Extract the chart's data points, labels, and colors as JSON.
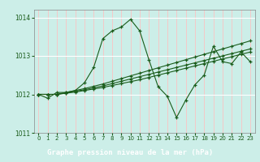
{
  "title": "Graphe pression niveau de la mer (hPa)",
  "bg_color": "#cceee8",
  "plot_bg_color": "#cceee8",
  "line_color": "#1a5c1a",
  "grid_color_v": "#f5c8c8",
  "grid_color_h": "#ffffff",
  "label_bg": "#2d6e2d",
  "label_fg": "#ffffff",
  "ylim": [
    1011.0,
    1014.2
  ],
  "xlim": [
    -0.5,
    23.5
  ],
  "yticks": [
    1011,
    1012,
    1013,
    1014
  ],
  "xticks": [
    0,
    1,
    2,
    3,
    4,
    5,
    6,
    7,
    8,
    9,
    10,
    11,
    12,
    13,
    14,
    15,
    16,
    17,
    18,
    19,
    20,
    21,
    22,
    23
  ],
  "series1": [
    1012.0,
    1011.9,
    1012.05,
    1012.05,
    1012.1,
    1012.3,
    1012.7,
    1013.45,
    1013.65,
    1013.75,
    1013.95,
    1013.65,
    1012.9,
    1012.2,
    1011.95,
    1011.4,
    1011.85,
    1012.25,
    1012.5,
    1013.25,
    1012.85,
    1012.8,
    1013.1,
    1012.85
  ],
  "series2": [
    1012.0,
    1012.0,
    1012.0,
    1012.03,
    1012.06,
    1012.1,
    1012.14,
    1012.18,
    1012.23,
    1012.28,
    1012.33,
    1012.38,
    1012.44,
    1012.5,
    1012.56,
    1012.62,
    1012.68,
    1012.74,
    1012.8,
    1012.86,
    1012.92,
    1012.98,
    1013.04,
    1013.1
  ],
  "series3": [
    1012.0,
    1012.0,
    1012.0,
    1012.04,
    1012.08,
    1012.12,
    1012.17,
    1012.22,
    1012.28,
    1012.34,
    1012.4,
    1012.46,
    1012.52,
    1012.58,
    1012.64,
    1012.7,
    1012.76,
    1012.82,
    1012.88,
    1012.94,
    1013.0,
    1013.06,
    1013.12,
    1013.18
  ],
  "series4": [
    1012.0,
    1012.0,
    1012.0,
    1012.05,
    1012.1,
    1012.15,
    1012.21,
    1012.27,
    1012.34,
    1012.41,
    1012.48,
    1012.55,
    1012.62,
    1012.69,
    1012.76,
    1012.83,
    1012.9,
    1012.97,
    1013.04,
    1013.11,
    1013.18,
    1013.25,
    1013.32,
    1013.39
  ]
}
